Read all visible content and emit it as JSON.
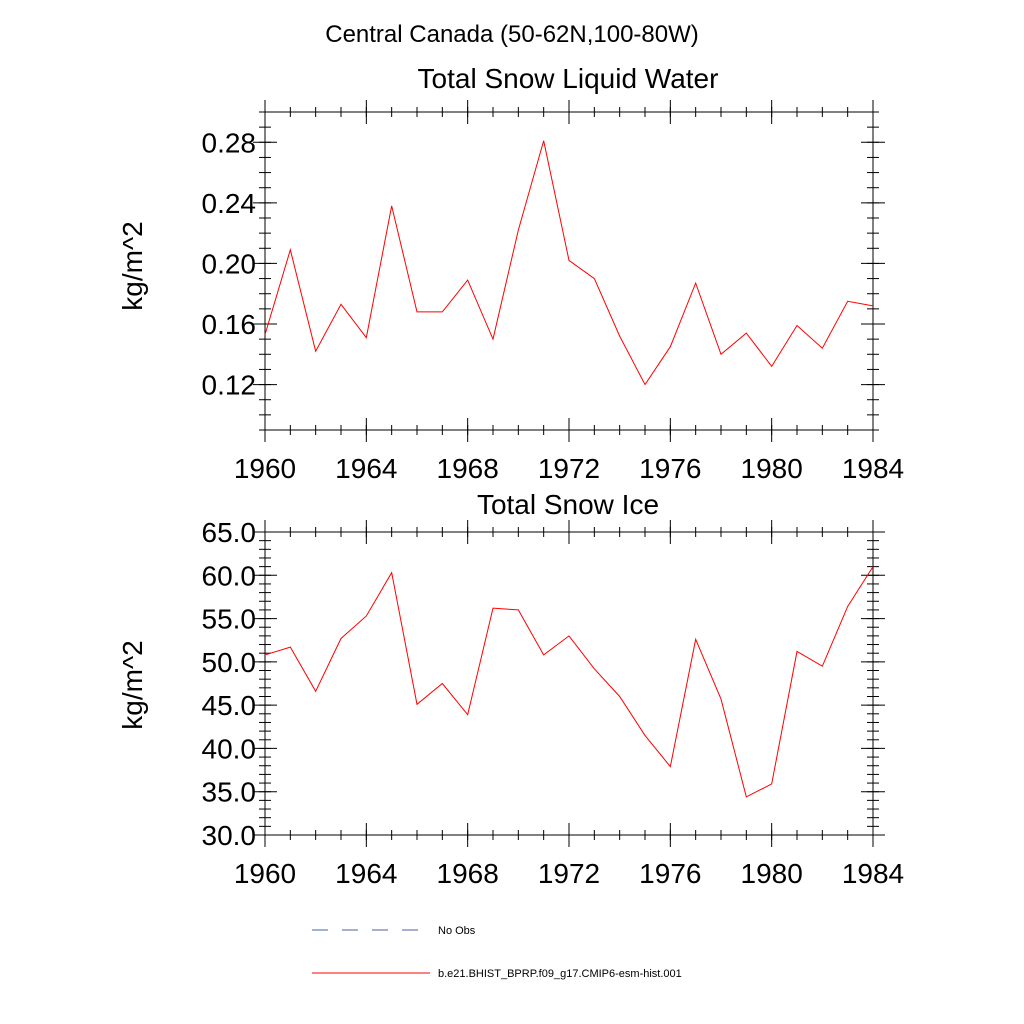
{
  "figure": {
    "suptitle": "Central Canada (50-62N,100-80W)"
  },
  "chart_data": [
    {
      "type": "line",
      "title": "Total Snow Liquid Water",
      "xlabel": "",
      "ylabel": "kg/m^2",
      "xlim": [
        1960,
        1984
      ],
      "ylim": [
        0.09,
        0.3
      ],
      "xticks": [
        "1960",
        "1964",
        "1968",
        "1972",
        "1976",
        "1980",
        "1984"
      ],
      "yticks": [
        "0.12",
        "0.16",
        "0.20",
        "0.24",
        "0.28"
      ],
      "x": [
        1960,
        1961,
        1962,
        1963,
        1964,
        1965,
        1966,
        1967,
        1968,
        1969,
        1970,
        1971,
        1972,
        1973,
        1974,
        1975,
        1976,
        1977,
        1978,
        1979,
        1980,
        1981,
        1982,
        1983,
        1984
      ],
      "series": [
        {
          "name": "b.e21.BHIST_BPRP.f09_g17.CMIP6-esm-hist.001",
          "color": "#ff0000",
          "values": [
            0.153,
            0.209,
            0.142,
            0.173,
            0.151,
            0.238,
            0.168,
            0.168,
            0.189,
            0.15,
            0.222,
            0.281,
            0.202,
            0.19,
            0.152,
            0.12,
            0.145,
            0.187,
            0.14,
            0.154,
            0.132,
            0.159,
            0.144,
            0.175,
            0.172
          ]
        }
      ]
    },
    {
      "type": "line",
      "title": "Total Snow Ice",
      "xlabel": "",
      "ylabel": "kg/m^2",
      "xlim": [
        1960,
        1984
      ],
      "ylim": [
        30.0,
        65.0
      ],
      "xticks": [
        "1960",
        "1964",
        "1968",
        "1972",
        "1976",
        "1980",
        "1984"
      ],
      "yticks": [
        "30.0",
        "35.0",
        "40.0",
        "45.0",
        "50.0",
        "55.0",
        "60.0",
        "65.0"
      ],
      "x": [
        1960,
        1961,
        1962,
        1963,
        1964,
        1965,
        1966,
        1967,
        1968,
        1969,
        1970,
        1971,
        1972,
        1973,
        1974,
        1975,
        1976,
        1977,
        1978,
        1979,
        1980,
        1981,
        1982,
        1983,
        1984
      ],
      "series": [
        {
          "name": "b.e21.BHIST_BPRP.f09_g17.CMIP6-esm-hist.001",
          "color": "#ff0000",
          "values": [
            50.8,
            51.7,
            46.6,
            52.7,
            55.3,
            60.3,
            45.1,
            47.5,
            43.9,
            56.2,
            56.0,
            50.8,
            53.0,
            49.2,
            46.0,
            41.5,
            37.9,
            52.6,
            45.7,
            34.4,
            35.9,
            51.2,
            49.5,
            56.4,
            61.0
          ]
        }
      ]
    }
  ],
  "legend": [
    {
      "label": "No Obs",
      "style": "dashed",
      "color": "#4b5fa0"
    },
    {
      "label": "b.e21.BHIST_BPRP.f09_g17.CMIP6-esm-hist.001",
      "style": "solid",
      "color": "#ff0000"
    }
  ]
}
